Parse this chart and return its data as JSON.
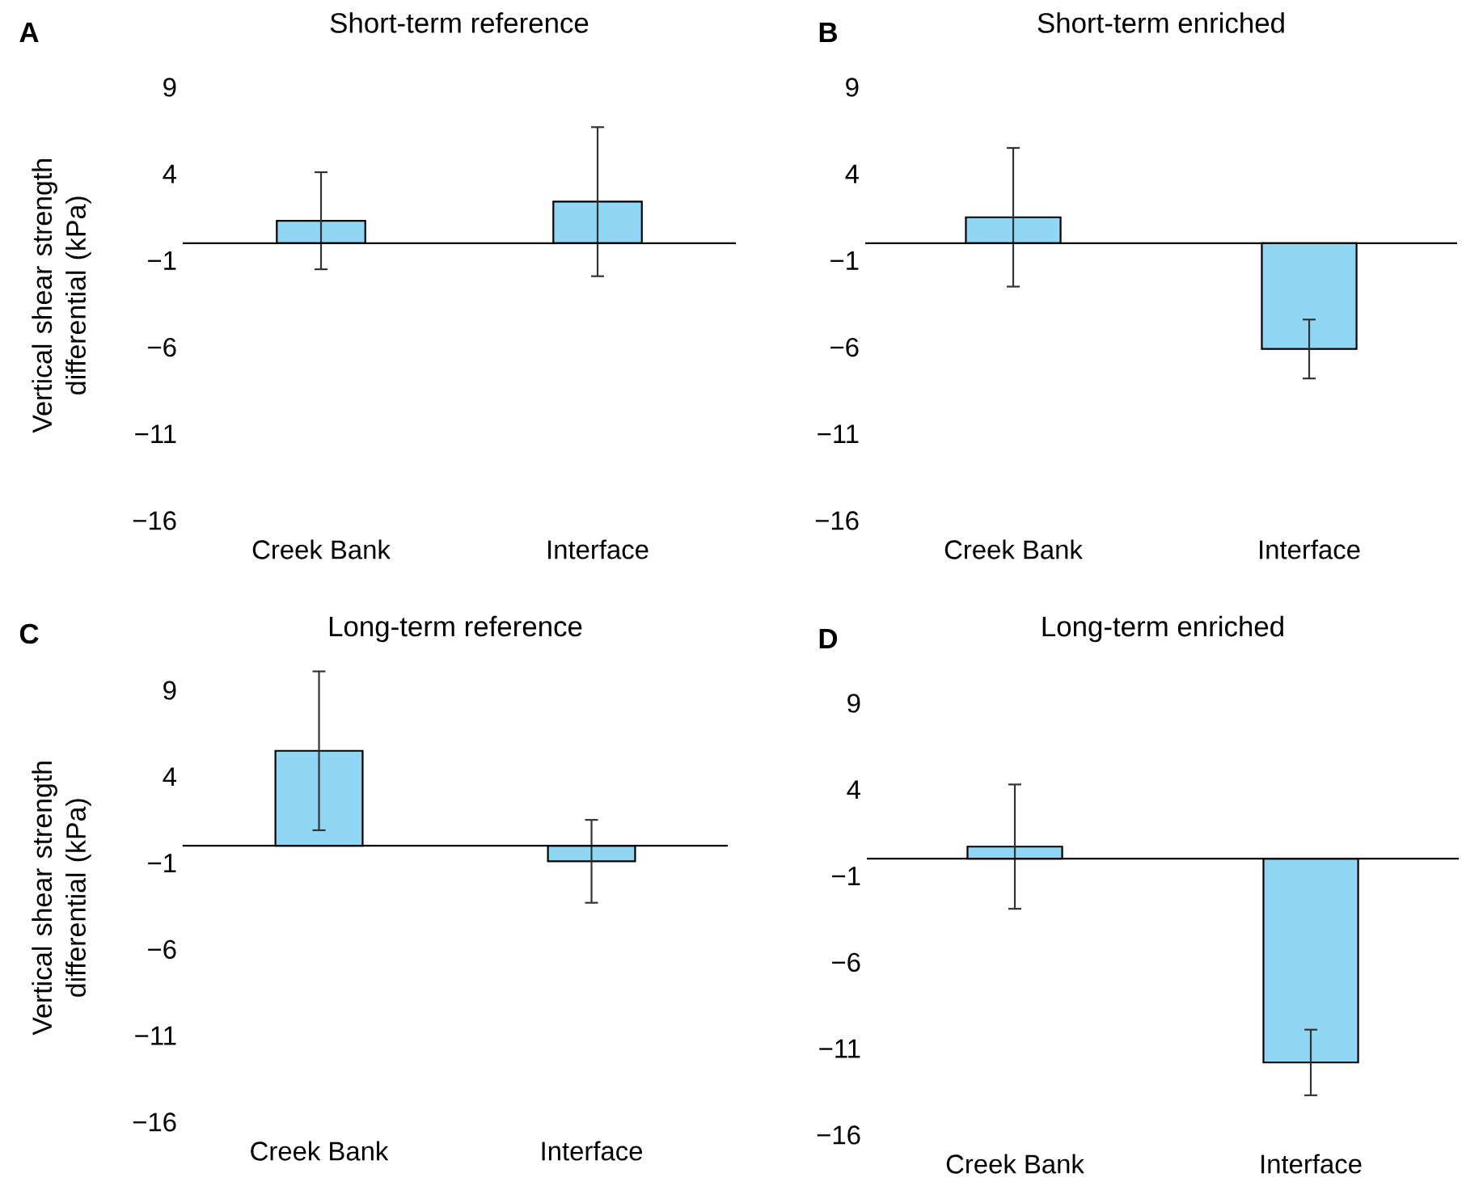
{
  "chart_data": [
    {
      "type": "bar",
      "title": "Short-term reference",
      "ylabel": "Vertical shear strength differential (kPa)",
      "annotations": [
        "A"
      ],
      "categories": [
        "Creek Bank",
        "Interface"
      ],
      "values": [
        1.3,
        2.4
      ],
      "errors": [
        2.8,
        4.3
      ],
      "color": "#8fd7f5",
      "ylim": [
        -16,
        9
      ],
      "yticks": [
        9,
        4,
        {
          "value": -1,
          "label": "−1"
        },
        {
          "value": -6,
          "label": "−6"
        },
        {
          "value": -11,
          "label": "−11"
        },
        {
          "value": -16,
          "label": "−16"
        }
      ]
    },
    {
      "type": "bar",
      "title": "Short-term enriched",
      "annotations": [
        "B"
      ],
      "categories": [
        "Creek Bank",
        "Interface"
      ],
      "values": [
        1.5,
        -6.1
      ],
      "errors": [
        4.0,
        1.7
      ],
      "color": "#8fd7f5",
      "ylim": [
        -16,
        9
      ],
      "yticks": [
        9,
        4,
        {
          "value": -1,
          "label": "−1"
        },
        {
          "value": -6,
          "label": "−6"
        },
        {
          "value": -11,
          "label": "−11"
        },
        {
          "value": -16,
          "label": "−16"
        }
      ]
    },
    {
      "type": "bar",
      "title": "Long-term reference",
      "ylabel": "Vertical shear strength differential (kPa)",
      "annotations": [
        "C"
      ],
      "categories": [
        "Creek Bank",
        "Interface"
      ],
      "values": [
        5.5,
        -0.9
      ],
      "errors": [
        4.6,
        2.4
      ],
      "color": "#8fd7f5",
      "ylim": [
        -16,
        9
      ],
      "yticks": [
        9,
        4,
        {
          "value": -1,
          "label": "−1"
        },
        {
          "value": -6,
          "label": "−6"
        },
        {
          "value": -11,
          "label": "−11"
        },
        {
          "value": -16,
          "label": "−16"
        }
      ]
    },
    {
      "type": "bar",
      "title": "Long-term enriched",
      "annotations": [
        "D"
      ],
      "categories": [
        "Creek Bank",
        "Interface"
      ],
      "values": [
        0.7,
        -11.8
      ],
      "errors": [
        3.6,
        1.9
      ],
      "color": "#8fd7f5",
      "ylim": [
        -16,
        9
      ],
      "yticks": [
        9,
        4,
        {
          "value": -1,
          "label": "−1"
        },
        {
          "value": -6,
          "label": "−6"
        },
        {
          "value": -11,
          "label": "−11"
        },
        {
          "value": -16,
          "label": "−16"
        }
      ]
    }
  ]
}
